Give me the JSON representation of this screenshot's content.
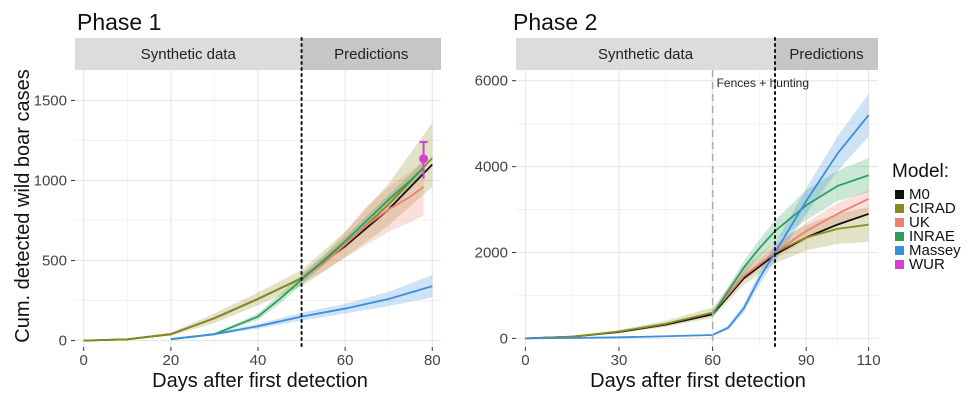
{
  "figure": {
    "ylabel": "Cum. detected wild boar cases",
    "xlabel": "Days after first detection"
  },
  "legend": {
    "title": "Model:",
    "items": [
      {
        "label": "M0",
        "color": "#111111"
      },
      {
        "label": "CIRAD",
        "color": "#8a8a1e"
      },
      {
        "label": "UK",
        "color": "#f08070"
      },
      {
        "label": "INRAE",
        "color": "#2e9e5b"
      },
      {
        "label": "Massey",
        "color": "#3b8fdc"
      },
      {
        "label": "WUR",
        "color": "#d63fd0"
      }
    ]
  },
  "chart_data": [
    {
      "type": "line",
      "title": "Phase 1",
      "xlabel": "Days after first detection",
      "ylabel": "Cum. detected wild boar cases",
      "xlim": [
        -2,
        82
      ],
      "ylim": [
        -40,
        1690
      ],
      "xticks": [
        0,
        20,
        40,
        60,
        80
      ],
      "yticks": [
        0,
        500,
        1000,
        1500
      ],
      "grid": true,
      "regions": [
        {
          "label": "Synthetic data",
          "from": -2,
          "to": 50
        },
        {
          "label": "Predictions",
          "from": 50,
          "to": 82
        }
      ],
      "vlines": [
        {
          "x": 50,
          "style": "dotted"
        }
      ],
      "series": [
        {
          "name": "M0",
          "x": [
            0,
            10,
            20,
            30,
            40,
            50,
            60,
            70,
            80
          ],
          "y": [
            0,
            8,
            40,
            140,
            260,
            390,
            590,
            820,
            1100
          ]
        },
        {
          "name": "CIRAD",
          "x": [
            0,
            10,
            20,
            30,
            40,
            50,
            60,
            70,
            80
          ],
          "y": [
            0,
            8,
            40,
            140,
            260,
            390,
            600,
            850,
            1140
          ],
          "lower": [
            0,
            6,
            30,
            110,
            220,
            340,
            520,
            720,
            960
          ],
          "upper": [
            0,
            10,
            50,
            170,
            300,
            440,
            680,
            980,
            1360
          ]
        },
        {
          "name": "UK",
          "x": [
            50,
            55,
            60,
            65,
            70,
            75,
            78
          ],
          "y": [
            390,
            480,
            600,
            720,
            820,
            900,
            960
          ],
          "lower": [
            360,
            430,
            520,
            600,
            680,
            740,
            780
          ],
          "upper": [
            420,
            530,
            680,
            840,
            960,
            1060,
            1120
          ]
        },
        {
          "name": "INRAE",
          "x": [
            20,
            30,
            40,
            45,
            50,
            55,
            60,
            65,
            70,
            75,
            78
          ],
          "y": [
            8,
            40,
            150,
            260,
            380,
            500,
            620,
            750,
            880,
            1000,
            1080
          ],
          "lower": [
            6,
            34,
            130,
            230,
            350,
            470,
            590,
            720,
            850,
            960,
            1040
          ],
          "upper": [
            10,
            46,
            170,
            290,
            410,
            530,
            650,
            780,
            910,
            1040,
            1120
          ]
        },
        {
          "name": "Massey",
          "x": [
            20,
            30,
            40,
            50,
            60,
            70,
            80
          ],
          "y": [
            10,
            40,
            90,
            150,
            200,
            260,
            340
          ],
          "lower": [
            8,
            32,
            75,
            125,
            170,
            215,
            270
          ],
          "upper": [
            12,
            48,
            105,
            175,
            230,
            305,
            410
          ]
        },
        {
          "name": "WUR",
          "x": [
            78
          ],
          "y": [
            1135
          ],
          "lower": [
            1010
          ],
          "upper": [
            1240
          ]
        }
      ]
    },
    {
      "type": "line",
      "title": "Phase 2",
      "xlabel": "Days after first detection",
      "ylabel": "",
      "xlim": [
        -3,
        113
      ],
      "ylim": [
        -200,
        6250
      ],
      "xticks": [
        0,
        30,
        60,
        90,
        110
      ],
      "yticks": [
        0,
        2000,
        4000,
        6000
      ],
      "grid": true,
      "regions": [
        {
          "label": "Synthetic data",
          "from": -3,
          "to": 80
        },
        {
          "label": "Predictions",
          "from": 80,
          "to": 113
        }
      ],
      "vlines": [
        {
          "x": 60,
          "style": "dashed",
          "label": "Fences + hunting"
        },
        {
          "x": 80,
          "style": "dotted"
        }
      ],
      "series": [
        {
          "name": "M0",
          "x": [
            0,
            15,
            30,
            45,
            60,
            70,
            80,
            90,
            100,
            110
          ],
          "y": [
            0,
            40,
            150,
            320,
            560,
            1400,
            1950,
            2350,
            2650,
            2900
          ]
        },
        {
          "name": "CIRAD",
          "x": [
            0,
            15,
            30,
            45,
            60,
            70,
            80,
            90,
            100,
            110
          ],
          "y": [
            0,
            40,
            160,
            340,
            600,
            1450,
            2000,
            2350,
            2550,
            2650
          ],
          "lower": [
            0,
            30,
            120,
            270,
            480,
            1250,
            1750,
            2050,
            2200,
            2250
          ],
          "upper": [
            0,
            50,
            200,
            410,
            720,
            1650,
            2250,
            2650,
            2900,
            3050
          ]
        },
        {
          "name": "UK",
          "x": [
            60,
            70,
            80,
            90,
            100,
            110
          ],
          "y": [
            600,
            1450,
            2000,
            2500,
            2900,
            3250
          ],
          "lower": [
            540,
            1350,
            1850,
            2300,
            2650,
            2950
          ],
          "upper": [
            660,
            1550,
            2150,
            2700,
            3150,
            3450
          ]
        },
        {
          "name": "INRAE",
          "x": [
            60,
            65,
            70,
            75,
            80,
            90,
            100,
            110
          ],
          "y": [
            550,
            1100,
            1650,
            2100,
            2500,
            3100,
            3550,
            3800
          ],
          "lower": [
            500,
            1000,
            1500,
            1900,
            2250,
            2750,
            3200,
            3400
          ],
          "upper": [
            600,
            1200,
            1800,
            2300,
            2750,
            3450,
            3900,
            4200
          ]
        },
        {
          "name": "Massey",
          "x": [
            0,
            15,
            30,
            45,
            60,
            65,
            70,
            75,
            80,
            85,
            90,
            100,
            110
          ],
          "y": [
            0,
            10,
            25,
            50,
            80,
            250,
            700,
            1400,
            2000,
            2600,
            3200,
            4300,
            5200
          ],
          "lower": [
            0,
            8,
            20,
            40,
            60,
            200,
            600,
            1250,
            1800,
            2350,
            2900,
            3900,
            4700
          ],
          "upper": [
            0,
            12,
            30,
            60,
            100,
            300,
            800,
            1550,
            2200,
            2850,
            3500,
            4700,
            5700
          ]
        }
      ]
    }
  ]
}
